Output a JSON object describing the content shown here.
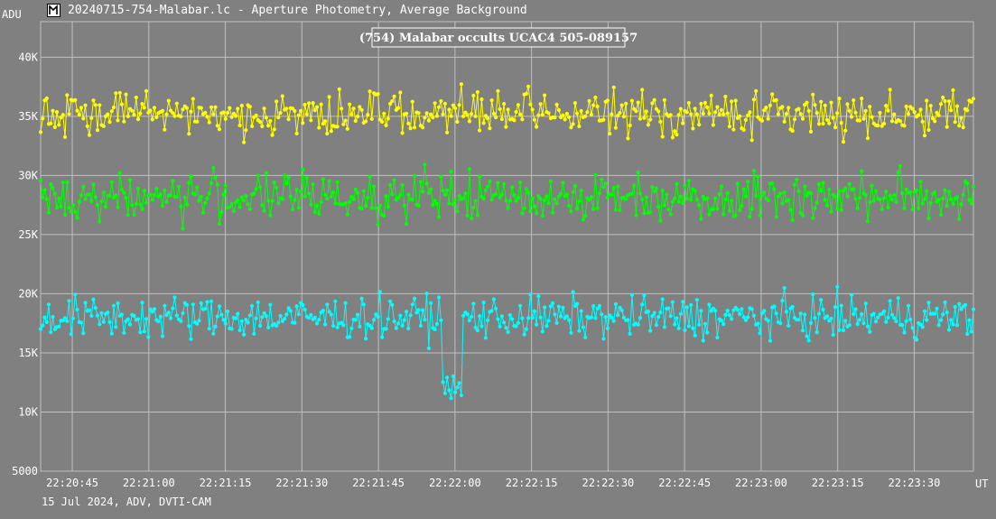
{
  "window": {
    "title": "20240715-754-Malabar.lc - Aperture Photometry, Average Background",
    "icon": "app-logo-icon"
  },
  "footer": {
    "note": "15 Jul 2024, ADV, DVTI-CAM"
  },
  "colors": {
    "background": "#808080",
    "grid": "#c0c0c0",
    "text": "#ffffff",
    "target": "#00ffff",
    "comp1": "#ffff00",
    "comp2": "#00ff00"
  },
  "chart_data": {
    "type": "line",
    "title": "(754) Malabar occults UCAC4 505-089157",
    "ylabel": "ADU",
    "xlabel": "UT",
    "ylim": [
      5000,
      43000
    ],
    "y_ticks": [
      5000,
      10000,
      15000,
      20000,
      25000,
      30000,
      35000,
      40000
    ],
    "y_tick_labels": [
      "5000",
      "10K",
      "15K",
      "20K",
      "25K",
      "30K",
      "35K",
      "40K"
    ],
    "x_start": "22:20:38.8",
    "x_end": "22:23:41.6",
    "x_ticks": [
      "22:20:45",
      "22:21:00",
      "22:21:15",
      "22:21:30",
      "22:21:45",
      "22:22:00",
      "22:22:15",
      "22:22:30",
      "22:22:45",
      "22:23:00",
      "22:23:15",
      "22:23:30"
    ],
    "grid": true,
    "series": [
      {
        "color": "#ffff00",
        "description": "comparison star (upper)",
        "mean": 35200,
        "scatter": 1200,
        "dropouts": []
      },
      {
        "color": "#00ff00",
        "description": "comparison star (middle)",
        "mean": 28200,
        "scatter": 1300,
        "dropouts": []
      },
      {
        "color": "#00ffff",
        "description": "target star",
        "mean": 18000,
        "scatter": 1150,
        "dropouts": [
          {
            "start": "22:21:57.3",
            "end": "22:22:01.5",
            "level": 12000
          }
        ]
      }
    ]
  }
}
